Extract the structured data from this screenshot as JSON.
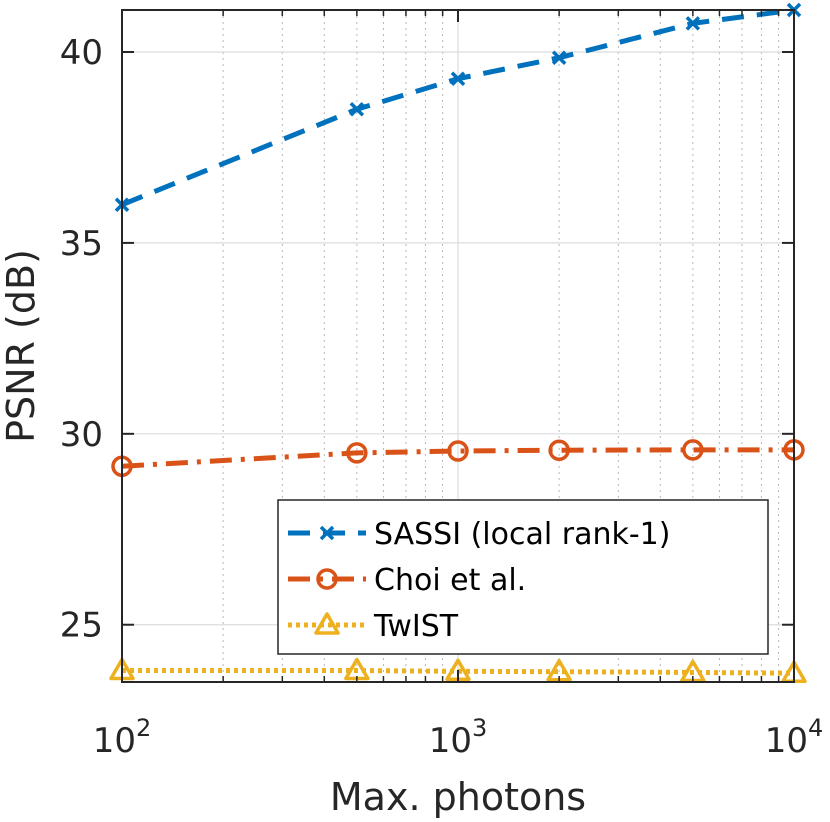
{
  "chart_data": {
    "type": "line",
    "xscale": "log",
    "xlabel": "Max. photons",
    "ylabel": "PSNR (dB)",
    "xlim": [
      100,
      10000
    ],
    "ylim": [
      23.5,
      41.1
    ],
    "grid": true,
    "xticks": [
      {
        "value": 100,
        "base": "10",
        "exp": "2"
      },
      {
        "value": 1000,
        "base": "10",
        "exp": "3"
      },
      {
        "value": 10000,
        "base": "10",
        "exp": "4"
      }
    ],
    "yticks": [
      {
        "value": 25,
        "label": "25"
      },
      {
        "value": 30,
        "label": "30"
      },
      {
        "value": 35,
        "label": "35"
      },
      {
        "value": 40,
        "label": "40"
      }
    ],
    "legend_position": "bottom-right",
    "x": [
      100,
      500,
      1000,
      2000,
      5000,
      10000
    ],
    "series": [
      {
        "name": "SASSI (local rank-1)",
        "color": "#0072BD",
        "line": "dashed",
        "marker": "x",
        "values": [
          36.0,
          38.5,
          39.3,
          39.85,
          40.75,
          41.1
        ]
      },
      {
        "name": "Choi et al.",
        "color": "#D95319",
        "line": "dashdot",
        "marker": "circle",
        "values": [
          29.15,
          29.5,
          29.55,
          29.57,
          29.58,
          29.58
        ]
      },
      {
        "name": "TwIST",
        "color": "#EDB120",
        "line": "dotted",
        "marker": "triangle",
        "values": [
          23.8,
          23.8,
          23.78,
          23.77,
          23.75,
          23.73
        ]
      }
    ]
  }
}
